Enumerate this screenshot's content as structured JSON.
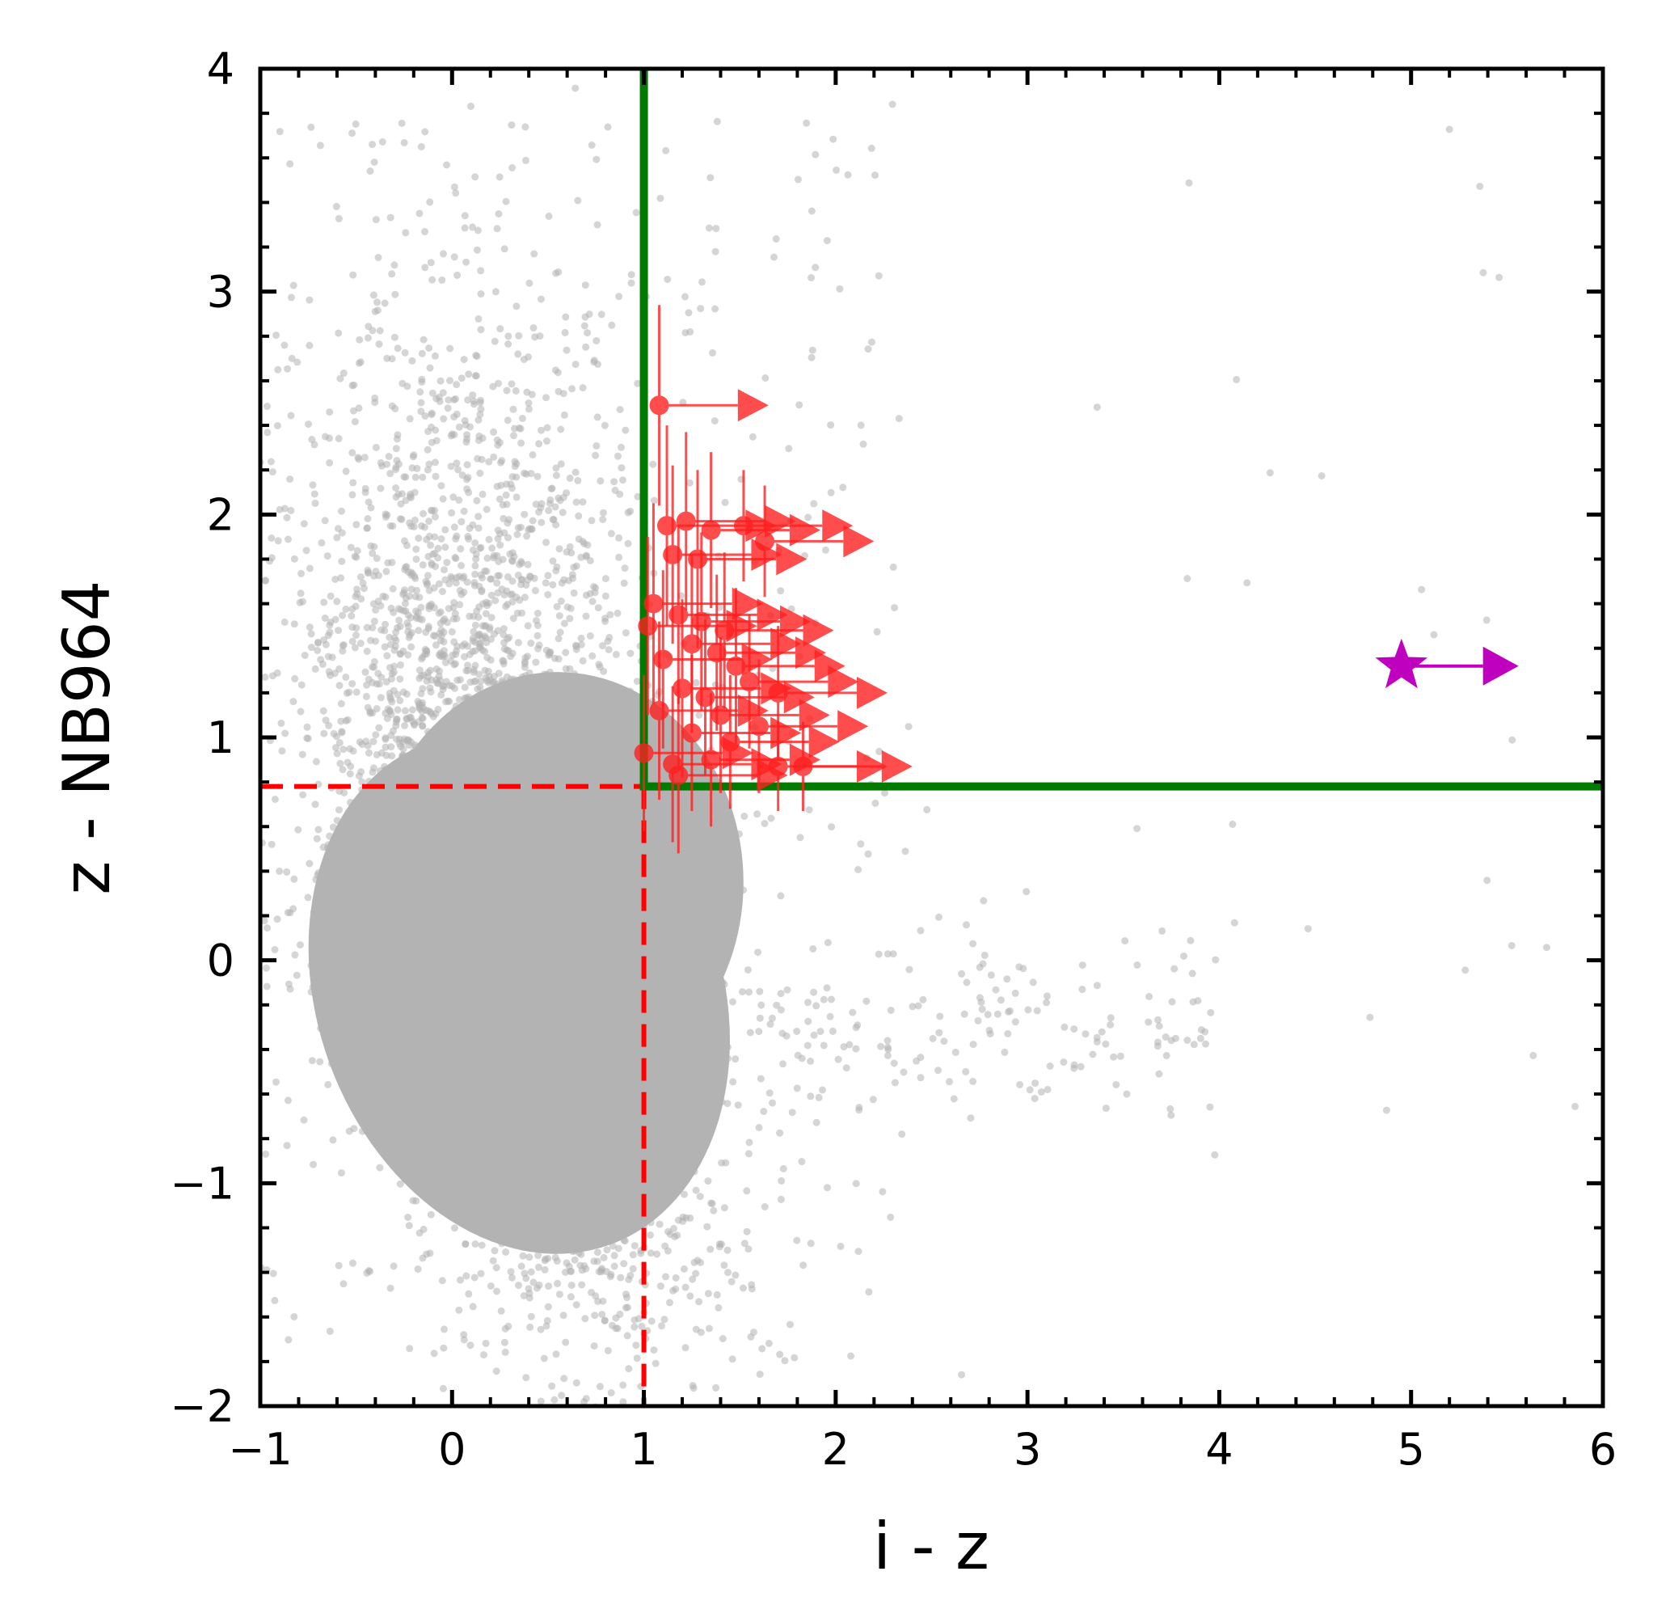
{
  "chart_data": {
    "type": "scatter",
    "xlabel": "i - z",
    "ylabel": "z - NB964",
    "xlim": [
      -1,
      6
    ],
    "ylim": [
      -2,
      4
    ],
    "xticks": [
      -1,
      0,
      1,
      2,
      3,
      4,
      5,
      6
    ],
    "xtick_labels": [
      "−1",
      "0",
      "1",
      "2",
      "3",
      "4",
      "5",
      "6"
    ],
    "yticks": [
      -2,
      -1,
      0,
      1,
      2,
      3,
      4
    ],
    "ytick_labels": [
      "−2",
      "−1",
      "0",
      "1",
      "2",
      "3",
      "4"
    ],
    "grid": false,
    "colors": {
      "background_points": "#b3b3b3",
      "candidates": "#ff2020",
      "highlight": "#bf00bf",
      "selection_boundary": "#007a00",
      "threshold_lines": "#ff0000"
    },
    "background_population": {
      "description_of_density": "dense cloud",
      "core_center": [
        0.35,
        -0.1
      ],
      "upper_center": [
        0.1,
        1.6
      ]
    },
    "selection_boundary": {
      "x_min": 1.0,
      "y_min": 0.78
    },
    "threshold_lines": {
      "x": 1.0,
      "y": 0.78
    },
    "candidates": [
      {
        "x": 1.08,
        "y": 2.49,
        "yerr": 0.45,
        "lower_limit": true
      },
      {
        "x": 1.12,
        "y": 1.95,
        "yerr": 0.45,
        "lower_limit": true
      },
      {
        "x": 1.22,
        "y": 1.97,
        "yerr": 0.4,
        "lower_limit": true
      },
      {
        "x": 1.35,
        "y": 1.93,
        "yerr": 0.35,
        "lower_limit": true
      },
      {
        "x": 1.52,
        "y": 1.95,
        "yerr": 0.25,
        "lower_limit": true
      },
      {
        "x": 1.63,
        "y": 1.88,
        "yerr": 0.25,
        "lower_limit": true
      },
      {
        "x": 1.15,
        "y": 1.82,
        "yerr": 0.4,
        "lower_limit": true
      },
      {
        "x": 1.28,
        "y": 1.8,
        "yerr": 0.4,
        "lower_limit": true
      },
      {
        "x": 1.05,
        "y": 1.6,
        "yerr": 0.45,
        "lower_limit": true
      },
      {
        "x": 1.18,
        "y": 1.55,
        "yerr": 0.4,
        "lower_limit": true
      },
      {
        "x": 1.3,
        "y": 1.52,
        "yerr": 0.4,
        "lower_limit": true
      },
      {
        "x": 1.42,
        "y": 1.48,
        "yerr": 0.35,
        "lower_limit": true
      },
      {
        "x": 1.02,
        "y": 1.5,
        "yerr": 0.4,
        "lower_limit": true
      },
      {
        "x": 1.25,
        "y": 1.42,
        "yerr": 0.4,
        "lower_limit": true
      },
      {
        "x": 1.38,
        "y": 1.38,
        "yerr": 0.35,
        "lower_limit": true
      },
      {
        "x": 1.1,
        "y": 1.35,
        "yerr": 0.4,
        "lower_limit": true
      },
      {
        "x": 1.48,
        "y": 1.32,
        "yerr": 0.35,
        "lower_limit": true
      },
      {
        "x": 1.2,
        "y": 1.22,
        "yerr": 0.4,
        "lower_limit": true
      },
      {
        "x": 1.32,
        "y": 1.18,
        "yerr": 0.35,
        "lower_limit": true
      },
      {
        "x": 1.55,
        "y": 1.25,
        "yerr": 0.3,
        "lower_limit": true
      },
      {
        "x": 1.7,
        "y": 1.2,
        "yerr": 0.3,
        "lower_limit": true
      },
      {
        "x": 1.08,
        "y": 1.12,
        "yerr": 0.4,
        "lower_limit": true
      },
      {
        "x": 1.4,
        "y": 1.1,
        "yerr": 0.35,
        "lower_limit": true
      },
      {
        "x": 1.6,
        "y": 1.05,
        "yerr": 0.3,
        "lower_limit": true
      },
      {
        "x": 1.25,
        "y": 1.02,
        "yerr": 0.35,
        "lower_limit": true
      },
      {
        "x": 1.45,
        "y": 0.98,
        "yerr": 0.3,
        "lower_limit": true
      },
      {
        "x": 1.0,
        "y": 0.93,
        "yerr": 0.35,
        "lower_limit": true
      },
      {
        "x": 1.15,
        "y": 0.88,
        "yerr": 0.35,
        "lower_limit": true
      },
      {
        "x": 1.35,
        "y": 0.9,
        "yerr": 0.3,
        "lower_limit": true
      },
      {
        "x": 1.7,
        "y": 0.87,
        "yerr": 0.2,
        "lower_limit": true
      },
      {
        "x": 1.83,
        "y": 0.87,
        "yerr": 0.2,
        "lower_limit": true
      },
      {
        "x": 1.18,
        "y": 0.83,
        "yerr": 0.35,
        "lower_limit": true
      }
    ],
    "highlight": {
      "x": 4.95,
      "y": 1.32,
      "marker": "star",
      "lower_limit": true
    }
  }
}
